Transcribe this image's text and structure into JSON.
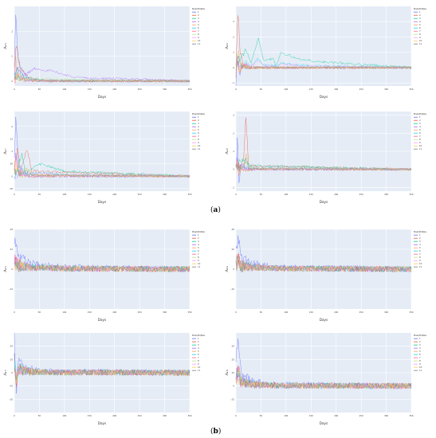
{
  "figure": {
    "caption_a": "a",
    "caption_b": "b",
    "palette": [
      "#636efa",
      "#ef553b",
      "#00cc96",
      "#ab63fa",
      "#ffa15a",
      "#19d3f3",
      "#ff6692",
      "#b6e880",
      "#ff97ff",
      "#fecb52",
      "#7f7f7f"
    ],
    "plot_bg": "#e5ecf6",
    "grid_color": "#ffffff"
  },
  "chart_data": [
    {
      "type": "line",
      "group": "a",
      "ylabel": "A₁₅",
      "xlabel": "Days",
      "xlim": [
        0,
        350
      ],
      "ylim": [
        -0.02,
        0.3
      ],
      "xticks": [
        0,
        50,
        100,
        150,
        200,
        250,
        300,
        350
      ],
      "yticks": [
        0,
        0.1,
        0.2
      ],
      "legend_title": "Pixel(t0)Size",
      "legend_items": [
        "1",
        "2",
        "3",
        "4",
        "5",
        "6",
        "7",
        "8",
        "9",
        "10",
        "11"
      ],
      "legend_position": "right",
      "series": [
        {
          "values": [
            [
              0,
              0.05
            ],
            [
              3,
              0.28
            ],
            [
              6,
              0.12
            ],
            [
              10,
              0.07
            ],
            [
              20,
              0.03
            ],
            [
              30,
              0.01
            ],
            [
              50,
              0.005
            ],
            [
              100,
              0
            ],
            [
              350,
              0
            ]
          ]
        },
        {
          "values": [
            [
              0,
              0.02
            ],
            [
              4,
              0.16
            ],
            [
              8,
              0.08
            ],
            [
              15,
              0.04
            ],
            [
              25,
              0.02
            ],
            [
              50,
              0
            ],
            [
              350,
              0
            ]
          ]
        },
        {
          "values": [
            [
              0,
              0.01
            ],
            [
              5,
              0.06
            ],
            [
              12,
              0.03
            ],
            [
              30,
              0.01
            ],
            [
              60,
              0.002
            ],
            [
              350,
              0
            ]
          ]
        },
        {
          "values": [
            [
              0,
              0.02
            ],
            [
              7,
              0.05
            ],
            [
              18,
              0.02
            ],
            [
              40,
              0.05
            ],
            [
              75,
              0.04
            ],
            [
              110,
              0.02
            ],
            [
              150,
              0.01
            ],
            [
              200,
              0.01
            ],
            [
              350,
              0
            ]
          ]
        }
      ]
    },
    {
      "type": "line",
      "group": "a",
      "ylabel": "A₁₆",
      "xlabel": "Days",
      "xlim": [
        0,
        350
      ],
      "ylim": [
        -0.12,
        0.4
      ],
      "xticks": [
        0,
        50,
        100,
        150,
        200,
        250,
        300,
        350
      ],
      "yticks": [
        -0.1,
        0,
        0.1,
        0.2,
        0.3
      ],
      "legend_title": "Pixel(t0)Size",
      "legend_items": [
        "1",
        "2",
        "3",
        "4",
        "5",
        "6",
        "7",
        "8",
        "9",
        "10",
        "11"
      ],
      "legend_position": "right",
      "series": [
        {
          "values": [
            [
              0,
              -0.1
            ],
            [
              3,
              0.1
            ],
            [
              8,
              -0.05
            ],
            [
              15,
              0.03
            ],
            [
              30,
              0
            ],
            [
              350,
              0
            ]
          ]
        },
        {
          "values": [
            [
              0,
              0.05
            ],
            [
              4,
              0.38
            ],
            [
              8,
              0.1
            ],
            [
              15,
              0.02
            ],
            [
              30,
              0
            ],
            [
              350,
              0
            ]
          ]
        },
        {
          "values": [
            [
              0,
              0
            ],
            [
              20,
              0.12
            ],
            [
              30,
              0.02
            ],
            [
              45,
              0.2
            ],
            [
              55,
              0.05
            ],
            [
              75,
              0.06
            ],
            [
              80,
              0.01
            ],
            [
              90,
              0.1
            ],
            [
              120,
              0.06
            ],
            [
              160,
              0.04
            ],
            [
              350,
              0
            ]
          ]
        }
      ]
    },
    {
      "type": "line",
      "group": "a",
      "ylabel": "A₁₇",
      "xlabel": "Days",
      "xlim": [
        0,
        350
      ],
      "ylim": [
        -0.06,
        0.26
      ],
      "xticks": [
        0,
        50,
        100,
        150,
        200,
        250,
        300,
        350
      ],
      "yticks": [
        -0.05,
        0,
        0.05,
        0.1,
        0.15,
        0.2
      ],
      "legend_title": "Pixel(t0)Size",
      "legend_items": [
        "1",
        "2",
        "3",
        "4",
        "5",
        "6",
        "7",
        "8",
        "9",
        "10",
        "11"
      ],
      "legend_position": "right",
      "series": [
        {
          "values": [
            [
              0,
              0.08
            ],
            [
              3,
              0.23
            ],
            [
              8,
              0.05
            ],
            [
              15,
              0.02
            ],
            [
              30,
              0
            ],
            [
              350,
              0
            ]
          ]
        },
        {
          "values": [
            [
              0,
              0.03
            ],
            [
              6,
              0.12
            ],
            [
              12,
              0.02
            ],
            [
              25,
              0.11
            ],
            [
              35,
              0.02
            ],
            [
              350,
              0
            ]
          ]
        },
        {
          "values": [
            [
              0,
              0
            ],
            [
              15,
              0.09
            ],
            [
              22,
              0.01
            ],
            [
              50,
              0.05
            ],
            [
              100,
              0.02
            ],
            [
              350,
              0
            ]
          ]
        }
      ]
    },
    {
      "type": "line",
      "group": "a",
      "ylabel": "A₁₈",
      "xlabel": "Days",
      "xlim": [
        0,
        350
      ],
      "ylim": [
        -0.12,
        0.32
      ],
      "xticks": [
        0,
        50,
        100,
        150,
        200,
        250,
        300,
        350
      ],
      "yticks": [
        -0.1,
        0,
        0.1,
        0.2,
        0.3
      ],
      "legend_title": "Pixel(t0)Size",
      "legend_items": [
        "1",
        "2",
        "3",
        "4",
        "5",
        "6",
        "7",
        "8",
        "9",
        "10",
        "11"
      ],
      "legend_position": "right",
      "series": [
        {
          "values": [
            [
              0,
              0
            ],
            [
              3,
              0.18
            ],
            [
              6,
              -0.1
            ],
            [
              10,
              0.04
            ],
            [
              20,
              0
            ],
            [
              350,
              0
            ]
          ]
        },
        {
          "values": [
            [
              0,
              0
            ],
            [
              15,
              0.05
            ],
            [
              20,
              0.3
            ],
            [
              25,
              0.02
            ],
            [
              350,
              0
            ]
          ]
        },
        {
          "values": [
            [
              0,
              0
            ],
            [
              10,
              0.06
            ],
            [
              30,
              0.02
            ],
            [
              350,
              0
            ]
          ]
        }
      ]
    },
    {
      "type": "line",
      "group": "b",
      "ylabel": "A₁₅",
      "xlabel": "Days",
      "xlim": [
        0,
        350
      ],
      "ylim": [
        -0.02,
        0.02
      ],
      "xticks": [
        0,
        50,
        100,
        150,
        200,
        250,
        300,
        350
      ],
      "yticks": [
        -0.01,
        0,
        0.01,
        0.02
      ],
      "legend_title": "Pixel(t0)Size",
      "legend_items": [
        "1",
        "2",
        "3",
        "4",
        "5",
        "6",
        "7",
        "8",
        "9",
        "10",
        "11"
      ],
      "legend_position": "right",
      "series": [
        {
          "values": [
            [
              0,
              0.015
            ],
            [
              5,
              0.01
            ],
            [
              10,
              0.006
            ],
            [
              30,
              0.003
            ],
            [
              100,
              0.001
            ],
            [
              350,
              0
            ]
          ]
        }
      ]
    },
    {
      "type": "line",
      "group": "b",
      "ylabel": "A₁₆",
      "xlabel": "Days",
      "xlim": [
        0,
        350
      ],
      "ylim": [
        -0.02,
        0.02
      ],
      "xticks": [
        0,
        50,
        100,
        150,
        200,
        250,
        300,
        350
      ],
      "yticks": [
        -0.01,
        0,
        0.01,
        0.02
      ],
      "legend_title": "Pixel(t0)Size",
      "legend_items": [
        "1",
        "2",
        "3",
        "4",
        "5",
        "6",
        "7",
        "8",
        "9",
        "10",
        "11"
      ],
      "legend_position": "right",
      "series": [
        {
          "values": [
            [
              0,
              0.01
            ],
            [
              5,
              0.016
            ],
            [
              10,
              0.006
            ],
            [
              30,
              0.003
            ],
            [
              100,
              0.001
            ],
            [
              350,
              0
            ]
          ]
        }
      ]
    },
    {
      "type": "line",
      "group": "b",
      "ylabel": "A₁₇",
      "xlabel": "Days",
      "xlim": [
        0,
        350
      ],
      "ylim": [
        -0.03,
        0.03
      ],
      "xticks": [
        0,
        50,
        100,
        150,
        200,
        250,
        300,
        350
      ],
      "yticks": [
        -0.02,
        -0.01,
        0,
        0.01,
        0.02
      ],
      "legend_title": "Pixel(t0)Size",
      "legend_items": [
        "1",
        "2",
        "3",
        "4",
        "5",
        "6",
        "7",
        "8",
        "9",
        "10",
        "11"
      ],
      "legend_position": "right",
      "series": [
        {
          "values": [
            [
              0,
              0.025
            ],
            [
              4,
              -0.02
            ],
            [
              8,
              0.01
            ],
            [
              20,
              0.004
            ],
            [
              60,
              0.001
            ],
            [
              350,
              0
            ]
          ]
        }
      ]
    },
    {
      "type": "line",
      "group": "b",
      "ylabel": "A₁₈",
      "xlabel": "Days",
      "xlim": [
        0,
        350
      ],
      "ylim": [
        -0.02,
        0.04
      ],
      "xticks": [
        0,
        50,
        100,
        150,
        200,
        250,
        300,
        350
      ],
      "yticks": [
        -0.01,
        0,
        0.01,
        0.02,
        0.03
      ],
      "legend_title": "Pixel(t0)Size",
      "legend_items": [
        "1",
        "2",
        "3",
        "4",
        "5",
        "6",
        "7",
        "8",
        "9",
        "10",
        "11"
      ],
      "legend_position": "right",
      "series": [
        {
          "values": [
            [
              0,
              0.02
            ],
            [
              5,
              0.035
            ],
            [
              10,
              0.01
            ],
            [
              30,
              0.004
            ],
            [
              80,
              0.001
            ],
            [
              350,
              0
            ]
          ]
        }
      ]
    }
  ]
}
